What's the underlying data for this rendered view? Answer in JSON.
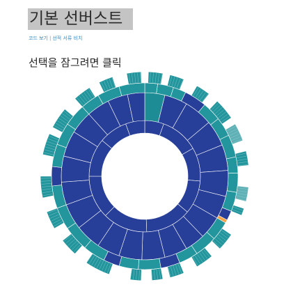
{
  "page": {
    "title": "기본 선버스트",
    "links": {
      "view_code": "코드 보기",
      "separator": "|",
      "view_bugs": "선적 서류 비치"
    },
    "instruction": "선택을 잠그려면 클릭"
  },
  "colors": {
    "level1": "#283f99",
    "level2": "#1e8c94",
    "level3": "#23959c",
    "level3_light": "#5fb1b6",
    "highlight": "#f3a448",
    "stroke": "#ffffff"
  },
  "chart_data": {
    "type": "sunburst",
    "title": "",
    "rings": [
      {
        "level": 1,
        "color_key": "level1",
        "segments": [
          {
            "start": 0,
            "end": 20
          },
          {
            "start": 20,
            "end": 60
          },
          {
            "start": 60,
            "end": 95
          },
          {
            "start": 95,
            "end": 130
          },
          {
            "start": 130,
            "end": 178
          },
          {
            "start": 178,
            "end": 225
          },
          {
            "start": 225,
            "end": 270
          },
          {
            "start": 270,
            "end": 310
          },
          {
            "start": 310,
            "end": 340
          },
          {
            "start": 340,
            "end": 360
          }
        ]
      },
      {
        "level": 2,
        "color_key": "level1",
        "segments": [
          {
            "start": 0,
            "end": 14,
            "color_key": "level2"
          },
          {
            "start": 14,
            "end": 30
          },
          {
            "start": 30,
            "end": 50
          },
          {
            "start": 50,
            "end": 68
          },
          {
            "start": 68,
            "end": 86
          },
          {
            "start": 86,
            "end": 104
          },
          {
            "start": 104,
            "end": 120
          },
          {
            "start": 120,
            "end": 136
          },
          {
            "start": 136,
            "end": 150
          },
          {
            "start": 150,
            "end": 166
          },
          {
            "start": 166,
            "end": 182
          },
          {
            "start": 182,
            "end": 198
          },
          {
            "start": 198,
            "end": 214
          },
          {
            "start": 214,
            "end": 232
          },
          {
            "start": 232,
            "end": 250
          },
          {
            "start": 250,
            "end": 266
          },
          {
            "start": 266,
            "end": 284
          },
          {
            "start": 284,
            "end": 302
          },
          {
            "start": 302,
            "end": 318
          },
          {
            "start": 318,
            "end": 334
          },
          {
            "start": 334,
            "end": 348
          },
          {
            "start": 348,
            "end": 360
          }
        ]
      },
      {
        "level": 3,
        "color_key": "level3",
        "segments": [
          {
            "start": 0,
            "end": 8
          },
          {
            "start": 8,
            "end": 18
          },
          {
            "start": 18,
            "end": 26
          },
          {
            "start": 26,
            "end": 40,
            "color_key": "level1"
          },
          {
            "start": 40,
            "end": 52
          },
          {
            "start": 52,
            "end": 64
          },
          {
            "start": 64,
            "end": 78
          },
          {
            "start": 78,
            "end": 88
          },
          {
            "start": 88,
            "end": 100
          },
          {
            "start": 100,
            "end": 112
          },
          {
            "start": 112,
            "end": 118,
            "color_key": "level1"
          },
          {
            "start": 118,
            "end": 120,
            "color_key": "highlight"
          },
          {
            "start": 120,
            "end": 132
          },
          {
            "start": 132,
            "end": 146
          },
          {
            "start": 146,
            "end": 158
          },
          {
            "start": 158,
            "end": 170,
            "color_key": "level1"
          },
          {
            "start": 170,
            "end": 184
          },
          {
            "start": 184,
            "end": 196
          },
          {
            "start": 196,
            "end": 206,
            "color_key": "level1"
          },
          {
            "start": 206,
            "end": 220
          },
          {
            "start": 220,
            "end": 236
          },
          {
            "start": 236,
            "end": 250
          },
          {
            "start": 250,
            "end": 264
          },
          {
            "start": 264,
            "end": 276,
            "color_key": "level1"
          },
          {
            "start": 276,
            "end": 290
          },
          {
            "start": 290,
            "end": 304
          },
          {
            "start": 304,
            "end": 318
          },
          {
            "start": 318,
            "end": 330
          },
          {
            "start": 330,
            "end": 344
          },
          {
            "start": 344,
            "end": 360
          }
        ]
      },
      {
        "level": 4,
        "color_key": "level3",
        "segments": [
          {
            "start": 2,
            "end": 10
          },
          {
            "start": 14,
            "end": 22
          },
          {
            "start": 30,
            "end": 38
          },
          {
            "start": 44,
            "end": 56
          },
          {
            "start": 60,
            "end": 70,
            "color_key": "level3_light"
          },
          {
            "start": 76,
            "end": 84
          },
          {
            "start": 96,
            "end": 104,
            "color_key": "level3_light"
          },
          {
            "start": 108,
            "end": 112
          },
          {
            "start": 124,
            "end": 134
          },
          {
            "start": 140,
            "end": 150
          },
          {
            "start": 158,
            "end": 166
          },
          {
            "start": 170,
            "end": 176
          },
          {
            "start": 182,
            "end": 188
          },
          {
            "start": 200,
            "end": 214
          },
          {
            "start": 222,
            "end": 232
          },
          {
            "start": 240,
            "end": 250
          },
          {
            "start": 258,
            "end": 270
          },
          {
            "start": 282,
            "end": 294
          },
          {
            "start": 298,
            "end": 310
          },
          {
            "start": 318,
            "end": 328
          },
          {
            "start": 334,
            "end": 342
          },
          {
            "start": 350,
            "end": 358
          }
        ]
      }
    ]
  }
}
